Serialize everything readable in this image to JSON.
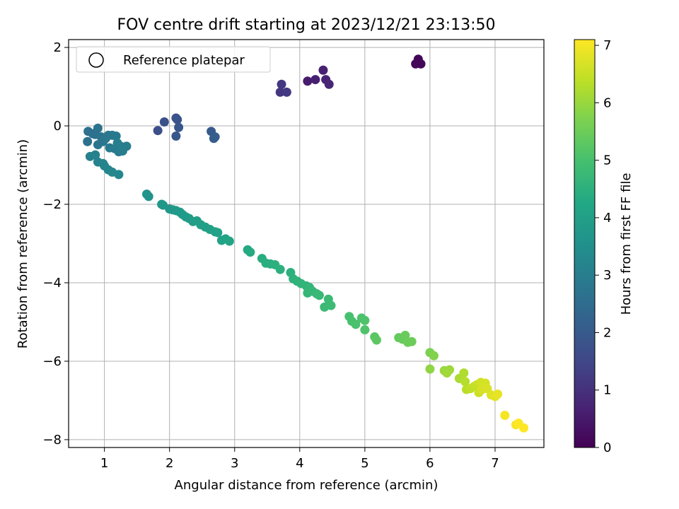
{
  "chart_data": {
    "type": "scatter",
    "title": "FOV centre drift starting at 2023/12/21 23:13:50",
    "xlabel": "Angular distance from reference (arcmin)",
    "ylabel": "Rotation from reference (arcmin)",
    "xlim": [
      0.45,
      7.75
    ],
    "ylim": [
      -8.2,
      2.2
    ],
    "xticks": [
      1,
      2,
      3,
      4,
      5,
      6,
      7
    ],
    "yticks": [
      -8,
      -6,
      -4,
      -2,
      0,
      2
    ],
    "grid": true,
    "legend": {
      "placement": "top-left",
      "entries": [
        "Reference platepar"
      ]
    },
    "colorbar": {
      "label": "Hours from first FF file",
      "colormap": "viridis",
      "range": [
        0,
        7.1
      ],
      "ticks": [
        0,
        1,
        2,
        3,
        4,
        5,
        6,
        7
      ]
    },
    "points": [
      [
        5.8,
        1.6,
        0.05
      ],
      [
        5.82,
        1.7,
        0.08
      ],
      [
        5.86,
        1.58,
        0.1
      ],
      [
        5.78,
        1.58,
        0.12
      ],
      [
        4.12,
        1.14,
        0.55
      ],
      [
        4.24,
        1.18,
        0.6
      ],
      [
        4.36,
        1.42,
        0.65
      ],
      [
        4.4,
        1.18,
        0.7
      ],
      [
        4.45,
        1.06,
        0.75
      ],
      [
        3.7,
        0.86,
        1.1
      ],
      [
        3.72,
        1.06,
        1.15
      ],
      [
        3.8,
        0.86,
        1.2
      ],
      [
        1.82,
        -0.12,
        1.7
      ],
      [
        1.92,
        0.1,
        1.75
      ],
      [
        2.1,
        0.2,
        1.8
      ],
      [
        2.12,
        0.16,
        1.85
      ],
      [
        2.14,
        -0.04,
        1.9
      ],
      [
        2.1,
        -0.26,
        1.95
      ],
      [
        2.64,
        -0.14,
        2.0
      ],
      [
        2.7,
        -0.28,
        2.05
      ],
      [
        2.68,
        -0.32,
        2.1
      ],
      [
        0.75,
        -0.14,
        2.6
      ],
      [
        0.74,
        -0.4,
        2.62
      ],
      [
        0.82,
        -0.2,
        2.65
      ],
      [
        0.86,
        -0.22,
        2.68
      ],
      [
        0.9,
        -0.06,
        2.7
      ],
      [
        0.95,
        -0.28,
        2.72
      ],
      [
        0.9,
        -0.48,
        2.75
      ],
      [
        0.98,
        -0.4,
        2.78
      ],
      [
        1.02,
        -0.32,
        2.8
      ],
      [
        1.06,
        -0.24,
        2.82
      ],
      [
        1.12,
        -0.24,
        2.85
      ],
      [
        1.18,
        -0.26,
        2.88
      ],
      [
        1.08,
        -0.56,
        2.9
      ],
      [
        1.16,
        -0.58,
        2.92
      ],
      [
        1.22,
        -0.66,
        2.95
      ],
      [
        1.28,
        -0.64,
        2.97
      ],
      [
        1.25,
        -0.52,
        3.0
      ],
      [
        1.34,
        -0.52,
        3.02
      ],
      [
        1.2,
        -0.44,
        3.05
      ],
      [
        0.78,
        -0.78,
        3.1
      ],
      [
        0.86,
        -0.74,
        3.12
      ],
      [
        0.9,
        -0.92,
        3.15
      ],
      [
        0.98,
        -0.96,
        3.18
      ],
      [
        1.0,
        -1.02,
        3.2
      ],
      [
        1.06,
        -1.12,
        3.22
      ],
      [
        1.12,
        -1.18,
        3.25
      ],
      [
        1.22,
        -1.24,
        3.28
      ],
      [
        1.65,
        -1.74,
        3.6
      ],
      [
        1.68,
        -1.8,
        3.62
      ],
      [
        1.88,
        -2.0,
        3.7
      ],
      [
        1.9,
        -2.02,
        3.72
      ],
      [
        2.0,
        -2.12,
        3.75
      ],
      [
        2.05,
        -2.14,
        3.78
      ],
      [
        2.1,
        -2.16,
        3.8
      ],
      [
        2.16,
        -2.2,
        3.82
      ],
      [
        2.2,
        -2.26,
        3.85
      ],
      [
        2.25,
        -2.32,
        3.88
      ],
      [
        2.3,
        -2.36,
        3.9
      ],
      [
        2.36,
        -2.44,
        3.92
      ],
      [
        2.42,
        -2.42,
        3.95
      ],
      [
        2.48,
        -2.52,
        3.98
      ],
      [
        2.55,
        -2.58,
        4.0
      ],
      [
        2.62,
        -2.64,
        4.02
      ],
      [
        2.7,
        -2.7,
        4.05
      ],
      [
        2.74,
        -2.72,
        4.08
      ],
      [
        2.8,
        -2.92,
        4.1
      ],
      [
        2.86,
        -2.88,
        4.12
      ],
      [
        2.92,
        -2.94,
        4.15
      ],
      [
        3.2,
        -3.16,
        4.3
      ],
      [
        3.24,
        -3.22,
        4.32
      ],
      [
        3.42,
        -3.38,
        4.4
      ],
      [
        3.48,
        -3.5,
        4.42
      ],
      [
        3.55,
        -3.52,
        4.45
      ],
      [
        3.62,
        -3.54,
        4.48
      ],
      [
        3.7,
        -3.66,
        4.5
      ],
      [
        3.86,
        -3.74,
        4.52
      ],
      [
        3.9,
        -3.9,
        4.55
      ],
      [
        3.96,
        -3.96,
        4.58
      ],
      [
        4.02,
        -4.02,
        4.6
      ],
      [
        4.1,
        -4.08,
        4.62
      ],
      [
        4.15,
        -4.12,
        4.65
      ],
      [
        4.12,
        -4.26,
        4.68
      ],
      [
        4.2,
        -4.22,
        4.7
      ],
      [
        4.26,
        -4.28,
        4.72
      ],
      [
        4.3,
        -4.32,
        4.75
      ],
      [
        4.38,
        -4.62,
        4.78
      ],
      [
        4.44,
        -4.42,
        4.8
      ],
      [
        4.48,
        -4.58,
        4.82
      ],
      [
        4.76,
        -4.86,
        5.0
      ],
      [
        4.8,
        -4.98,
        5.02
      ],
      [
        4.86,
        -5.06,
        5.05
      ],
      [
        4.95,
        -4.9,
        5.08
      ],
      [
        5.0,
        -4.96,
        5.1
      ],
      [
        5.0,
        -5.2,
        5.12
      ],
      [
        5.15,
        -5.38,
        5.25
      ],
      [
        5.18,
        -5.46,
        5.28
      ],
      [
        5.52,
        -5.4,
        5.4
      ],
      [
        5.58,
        -5.44,
        5.42
      ],
      [
        5.62,
        -5.34,
        5.45
      ],
      [
        5.66,
        -5.52,
        5.48
      ],
      [
        5.72,
        -5.5,
        5.5
      ],
      [
        6.0,
        -5.78,
        5.7
      ],
      [
        6.06,
        -5.86,
        5.75
      ],
      [
        6.0,
        -6.2,
        5.9
      ],
      [
        6.22,
        -6.24,
        6.0
      ],
      [
        6.3,
        -6.22,
        6.05
      ],
      [
        6.26,
        -6.3,
        6.08
      ],
      [
        6.45,
        -6.44,
        6.2
      ],
      [
        6.52,
        -6.3,
        6.25
      ],
      [
        6.54,
        -6.52,
        6.3
      ],
      [
        6.56,
        -6.72,
        6.35
      ],
      [
        6.62,
        -6.7,
        6.4
      ],
      [
        6.68,
        -6.64,
        6.45
      ],
      [
        6.72,
        -6.6,
        6.5
      ],
      [
        6.75,
        -6.8,
        6.55
      ],
      [
        6.78,
        -6.54,
        6.6
      ],
      [
        6.82,
        -6.6,
        6.62
      ],
      [
        6.85,
        -6.56,
        6.65
      ],
      [
        6.8,
        -6.72,
        6.68
      ],
      [
        6.88,
        -6.7,
        6.7
      ],
      [
        6.94,
        -6.86,
        6.75
      ],
      [
        7.0,
        -6.9,
        6.8
      ],
      [
        7.04,
        -6.84,
        6.85
      ],
      [
        7.15,
        -7.38,
        7.0
      ],
      [
        7.32,
        -7.62,
        7.05
      ],
      [
        7.36,
        -7.58,
        7.08
      ],
      [
        7.44,
        -7.7,
        7.1
      ]
    ]
  }
}
